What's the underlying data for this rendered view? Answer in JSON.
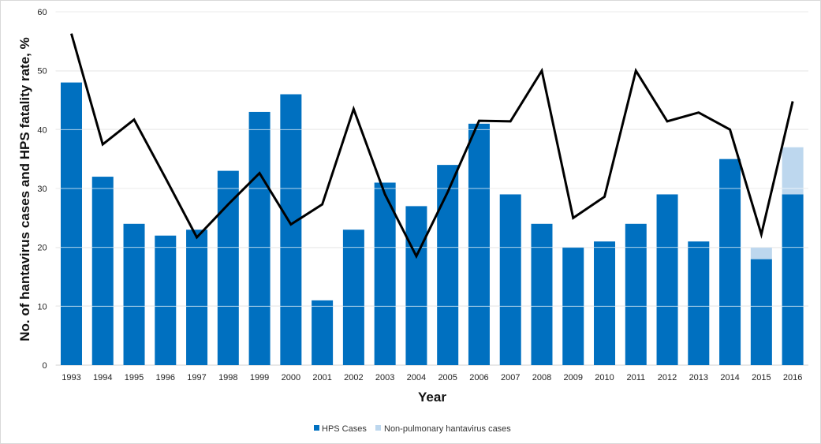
{
  "chart_data": {
    "type": "bar",
    "title": "",
    "xlabel": "Year",
    "ylabel": "No. of hantavirus cases and HPS fatality rate, %",
    "ylim": [
      0,
      60
    ],
    "yticks": [
      0,
      10,
      20,
      30,
      40,
      50,
      60
    ],
    "grid": true,
    "legend_position": "bottom",
    "categories": [
      "1993",
      "1994",
      "1995",
      "1996",
      "1997",
      "1998",
      "1999",
      "2000",
      "2001",
      "2002",
      "2003",
      "2004",
      "2005",
      "2006",
      "2007",
      "2008",
      "2009",
      "2010",
      "2011",
      "2012",
      "2013",
      "2014",
      "2015",
      "2016"
    ],
    "series": [
      {
        "name": "HPS Cases",
        "type": "bar",
        "stacked": true,
        "color": "#0070c0",
        "values": [
          48,
          32,
          24,
          22,
          23,
          33,
          43,
          46,
          11,
          23,
          31,
          27,
          34,
          41,
          29,
          24,
          20,
          21,
          24,
          29,
          21,
          35,
          18,
          29
        ]
      },
      {
        "name": "Non-pulmonary hantavirus cases",
        "type": "bar",
        "stacked": true,
        "color": "#bdd7ee",
        "values": [
          0,
          0,
          0,
          0,
          0,
          0,
          0,
          0,
          0,
          0,
          0,
          0,
          0,
          0,
          0,
          0,
          0,
          0,
          0,
          0,
          0,
          0,
          2,
          8
        ]
      },
      {
        "type": "line",
        "color": "#000000",
        "values": [
          56.3,
          37.5,
          41.7,
          31.8,
          21.7,
          27.3,
          32.6,
          23.9,
          27.3,
          43.5,
          29.0,
          18.5,
          29.4,
          41.5,
          41.4,
          50.0,
          25.0,
          28.6,
          50.0,
          41.4,
          42.9,
          40.0,
          22.2,
          44.8
        ]
      }
    ]
  }
}
